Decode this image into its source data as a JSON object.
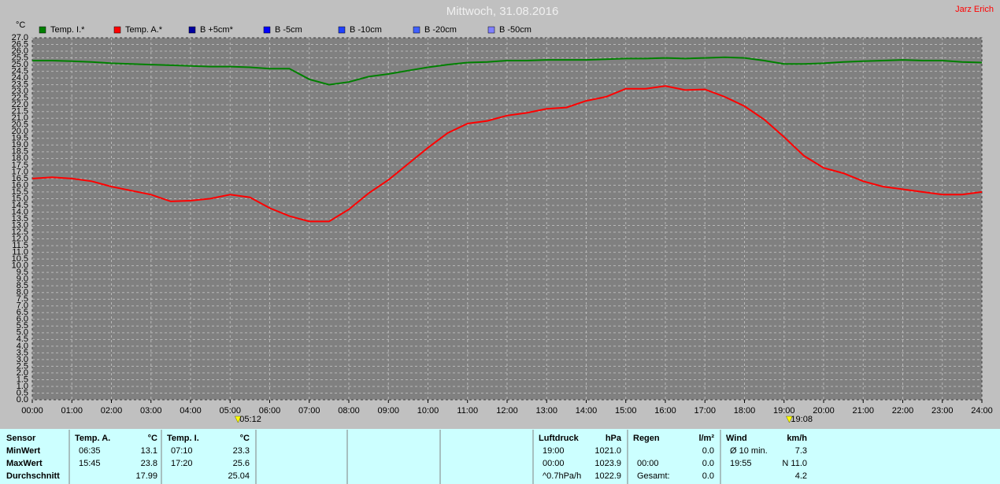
{
  "chart_data": {
    "type": "line",
    "title": "Mittwoch, 31.08.2016",
    "author": "Jarz Erich",
    "y_label": "°C",
    "x": [
      0,
      0.5,
      1,
      1.5,
      2,
      2.5,
      3,
      3.5,
      4,
      4.5,
      5,
      5.5,
      6,
      6.5,
      7,
      7.5,
      8,
      8.5,
      9,
      9.5,
      10,
      10.5,
      11,
      11.5,
      12,
      12.5,
      13,
      13.5,
      14,
      14.5,
      15,
      15.5,
      16,
      16.5,
      17,
      17.5,
      18,
      18.5,
      19,
      19.5,
      20,
      20.5,
      21,
      21.5,
      22,
      22.5,
      23,
      23.5,
      24
    ],
    "series": [
      {
        "name": "Temp. I.*",
        "color": "#008000",
        "values": [
          25.3,
          25.3,
          25.25,
          25.2,
          25.1,
          25.05,
          25.0,
          24.95,
          24.9,
          24.85,
          24.85,
          24.8,
          24.7,
          24.7,
          23.9,
          23.5,
          23.7,
          24.1,
          24.3,
          24.55,
          24.8,
          25.0,
          25.15,
          25.2,
          25.3,
          25.3,
          25.35,
          25.35,
          25.35,
          25.4,
          25.45,
          25.45,
          25.5,
          25.45,
          25.5,
          25.55,
          25.5,
          25.3,
          25.05,
          25.05,
          25.1,
          25.2,
          25.25,
          25.3,
          25.35,
          25.3,
          25.3,
          25.2,
          25.15
        ]
      },
      {
        "name": "Temp. A.*",
        "color": "#ff0000",
        "values": [
          16.5,
          16.6,
          16.5,
          16.3,
          15.9,
          15.6,
          15.3,
          14.8,
          14.85,
          15.0,
          15.3,
          15.1,
          14.3,
          13.7,
          13.3,
          13.3,
          14.2,
          15.4,
          16.4,
          17.6,
          18.8,
          19.9,
          20.6,
          20.8,
          21.2,
          21.4,
          21.7,
          21.8,
          22.3,
          22.6,
          23.2,
          23.2,
          23.4,
          23.1,
          23.15,
          22.6,
          21.9,
          20.9,
          19.6,
          18.2,
          17.3,
          16.9,
          16.3,
          15.9,
          15.7,
          15.5,
          15.3,
          15.3,
          15.5
        ]
      }
    ],
    "legend_only": [
      {
        "name": "B +5cm*",
        "color": "#0000a0"
      },
      {
        "name": "B -5cm",
        "color": "#0000ff"
      },
      {
        "name": "B -10cm",
        "color": "#2040ff"
      },
      {
        "name": "B -20cm",
        "color": "#4060ff"
      },
      {
        "name": "B -50cm",
        "color": "#8080ff"
      }
    ],
    "annotations": [
      {
        "x": 5.2,
        "label": "05:12"
      },
      {
        "x": 19.133,
        "label": "19:08"
      }
    ],
    "xlim": [
      0,
      24
    ],
    "xticks": [
      {
        "value": 0,
        "label": "00:00"
      },
      {
        "value": 1,
        "label": "01:00"
      },
      {
        "value": 2,
        "label": "02:00"
      },
      {
        "value": 3,
        "label": "03:00"
      },
      {
        "value": 4,
        "label": "04:00"
      },
      {
        "value": 5,
        "label": "05:00"
      },
      {
        "value": 6,
        "label": "06:00"
      },
      {
        "value": 7,
        "label": "07:00"
      },
      {
        "value": 8,
        "label": "08:00"
      },
      {
        "value": 9,
        "label": "09:00"
      },
      {
        "value": 10,
        "label": "10:00"
      },
      {
        "value": 11,
        "label": "11:00"
      },
      {
        "value": 12,
        "label": "12:00"
      },
      {
        "value": 13,
        "label": "13:00"
      },
      {
        "value": 14,
        "label": "14:00"
      },
      {
        "value": 15,
        "label": "15:00"
      },
      {
        "value": 16,
        "label": "16:00"
      },
      {
        "value": 17,
        "label": "17:00"
      },
      {
        "value": 18,
        "label": "18:00"
      },
      {
        "value": 19,
        "label": "19:00"
      },
      {
        "value": 20,
        "label": "20:00"
      },
      {
        "value": 21,
        "label": "21:00"
      },
      {
        "value": 22,
        "label": "22:00"
      },
      {
        "value": 23,
        "label": "23:00"
      },
      {
        "value": 24,
        "label": "24:00"
      }
    ],
    "ylim": [
      0,
      27
    ],
    "yticks": [
      {
        "value": 0,
        "label": "0.0"
      },
      {
        "value": 0.5,
        "label": "0.5"
      },
      {
        "value": 1,
        "label": "1.0"
      },
      {
        "value": 1.5,
        "label": "1.5"
      },
      {
        "value": 2,
        "label": "2.0"
      },
      {
        "value": 2.5,
        "label": "2.5"
      },
      {
        "value": 3,
        "label": "3.0"
      },
      {
        "value": 3.5,
        "label": "3.5"
      },
      {
        "value": 4,
        "label": "4.0"
      },
      {
        "value": 4.5,
        "label": "4.5"
      },
      {
        "value": 5,
        "label": "5.0"
      },
      {
        "value": 5.5,
        "label": "5.5"
      },
      {
        "value": 6,
        "label": "6.0"
      },
      {
        "value": 6.5,
        "label": "6.5"
      },
      {
        "value": 7,
        "label": "7.0"
      },
      {
        "value": 7.5,
        "label": "7.5"
      },
      {
        "value": 8,
        "label": "8.0"
      },
      {
        "value": 8.5,
        "label": "8.5"
      },
      {
        "value": 9,
        "label": "9.0"
      },
      {
        "value": 9.5,
        "label": "9.5"
      },
      {
        "value": 10,
        "label": "10.0"
      },
      {
        "value": 10.5,
        "label": "10.5"
      },
      {
        "value": 11,
        "label": "11.0"
      },
      {
        "value": 11.5,
        "label": "11.5"
      },
      {
        "value": 12,
        "label": "12.0"
      },
      {
        "value": 12.5,
        "label": "12.5"
      },
      {
        "value": 13,
        "label": "13.0"
      },
      {
        "value": 13.5,
        "label": "13.5"
      },
      {
        "value": 14,
        "label": "14.0"
      },
      {
        "value": 14.5,
        "label": "14.5"
      },
      {
        "value": 15,
        "label": "15.0"
      },
      {
        "value": 15.5,
        "label": "15.5"
      },
      {
        "value": 16,
        "label": "16.0"
      },
      {
        "value": 16.5,
        "label": "16.5"
      },
      {
        "value": 17,
        "label": "17.0"
      },
      {
        "value": 17.5,
        "label": "17.5"
      },
      {
        "value": 18,
        "label": "18.0"
      },
      {
        "value": 18.5,
        "label": "18.5"
      },
      {
        "value": 19,
        "label": "19.0"
      },
      {
        "value": 19.5,
        "label": "19.5"
      },
      {
        "value": 20,
        "label": "20.0"
      },
      {
        "value": 20.5,
        "label": "20.5"
      },
      {
        "value": 21,
        "label": "21.0"
      },
      {
        "value": 21.5,
        "label": "21.5"
      },
      {
        "value": 22,
        "label": "22.0"
      },
      {
        "value": 22.5,
        "label": "22.5"
      },
      {
        "value": 23,
        "label": "23.0"
      },
      {
        "value": 23.5,
        "label": "23.5"
      },
      {
        "value": 24,
        "label": "24.0"
      },
      {
        "value": 24.5,
        "label": "24.5"
      },
      {
        "value": 25,
        "label": "25.0"
      },
      {
        "value": 25.5,
        "label": "25.5"
      },
      {
        "value": 26,
        "label": "26.0"
      },
      {
        "value": 26.5,
        "label": "26.5"
      },
      {
        "value": 27,
        "label": "27.0"
      }
    ],
    "grid": true
  },
  "table": {
    "row_labels": [
      "Sensor",
      "MinWert",
      "MaxWert",
      "Durchschnitt"
    ],
    "blocks": [
      {
        "header": [
          "Temp. A.",
          "°C"
        ],
        "rows": [
          [
            "06:35",
            "13.1"
          ],
          [
            "15:45",
            "23.8"
          ],
          [
            null,
            "17.99"
          ]
        ]
      },
      {
        "header": [
          "Temp. I.",
          "°C"
        ],
        "rows": [
          [
            "07:10",
            "23.3"
          ],
          [
            "17:20",
            "25.6"
          ],
          [
            null,
            "25.04"
          ]
        ]
      },
      {
        "header": [
          "Luftdruck",
          "hPa"
        ],
        "rows": [
          [
            "19:00",
            "1021.0"
          ],
          [
            "00:00",
            "1023.9"
          ],
          [
            "^0.7hPa/h",
            "1022.9"
          ]
        ]
      },
      {
        "header": [
          "Regen",
          "l/m²"
        ],
        "rows": [
          [
            null,
            "0.0"
          ],
          [
            "00:00",
            "0.0"
          ],
          [
            "Gesamt:",
            "0.0"
          ]
        ]
      },
      {
        "header": [
          "Wind",
          "km/h"
        ],
        "rows": [
          [
            "Ø 10 min.",
            "7.3"
          ],
          [
            "19:55",
            "N 11.0"
          ],
          [
            null,
            "4.2"
          ]
        ]
      }
    ]
  }
}
